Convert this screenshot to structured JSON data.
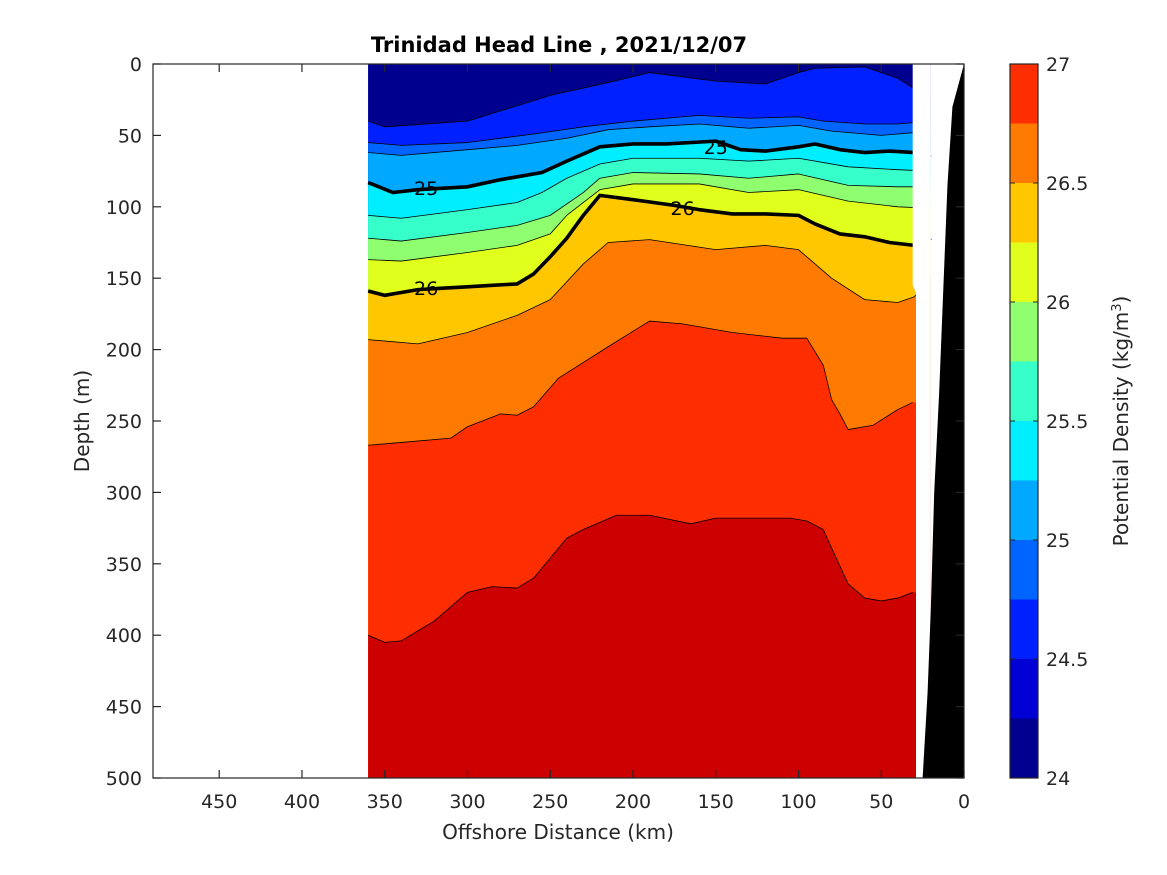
{
  "chart_data": {
    "type": "contour",
    "title": "Trinidad Head Line , 2021/12/07",
    "xlabel": "Offshore Distance (km)",
    "ylabel": "Depth (m)",
    "colorbar_label": "Potential Density (kg/m",
    "colorbar_label_sup": "3",
    "colorbar_label_close": ")",
    "xlim": [
      490,
      0
    ],
    "ylim": [
      0,
      500
    ],
    "x_reversed": true,
    "y_reversed": true,
    "x_ticks": [
      450,
      400,
      350,
      300,
      250,
      200,
      150,
      100,
      50,
      0
    ],
    "y_ticks": [
      0,
      50,
      100,
      150,
      200,
      250,
      300,
      350,
      400,
      450,
      500
    ],
    "colorbar_range": [
      24,
      27
    ],
    "colorbar_ticks": [
      24,
      24.5,
      25,
      25.5,
      26,
      26.5,
      27
    ],
    "colorbar_tick_labels": [
      "24",
      "24.5",
      "25",
      "25.5",
      "26",
      "26.5",
      "27"
    ],
    "levels": [
      24.25,
      24.5,
      24.75,
      25,
      25.25,
      25.5,
      25.75,
      26,
      26.25,
      26.5,
      26.75
    ],
    "colormap": [
      "#00008f",
      "#0000d5",
      "#0020ff",
      "#0064ff",
      "#00a8ff",
      "#00eeff",
      "#36ffc9",
      "#8fff70",
      "#e0ff1c",
      "#ffc700",
      "#ff7a00",
      "#ff2e00",
      "#cc0000"
    ],
    "section_x_range": [
      360,
      20
    ],
    "labeled_contours": [
      {
        "level": 25,
        "label": "25",
        "label_positions": [
          [
            150,
            58
          ],
          [
            325,
            87
          ]
        ]
      },
      {
        "level": 26,
        "label": "26",
        "label_positions": [
          [
            170,
            101
          ],
          [
            325,
            157
          ]
        ]
      }
    ],
    "contours": [
      {
        "level": 24.25,
        "x": [
          360,
          350,
          300,
          250,
          215,
          190,
          150,
          120,
          100,
          90,
          60,
          40,
          32,
          25,
          22
        ],
        "y": [
          40,
          44,
          40,
          22,
          13,
          6,
          12,
          14,
          6,
          3,
          2,
          10,
          16,
          22,
          24
        ]
      },
      {
        "level": 24.5,
        "x": [
          360,
          340,
          300,
          260,
          230,
          200,
          160,
          130,
          100,
          85,
          60,
          40,
          20
        ],
        "y": [
          55,
          57,
          55,
          49,
          44,
          40,
          36,
          38,
          37,
          40,
          42,
          42,
          40
        ]
      },
      {
        "level": 24.75,
        "x": [
          360,
          340,
          300,
          270,
          240,
          215,
          190,
          160,
          130,
          100,
          80,
          50,
          30,
          20
        ],
        "y": [
          62,
          64,
          60,
          57,
          52,
          46,
          44,
          42,
          45,
          43,
          47,
          50,
          48,
          48
        ]
      },
      {
        "level": 25,
        "x": [
          360,
          345,
          330,
          300,
          280,
          270,
          255,
          240,
          220,
          200,
          180,
          150,
          135,
          120,
          100,
          90,
          75,
          60,
          45,
          30,
          20
        ],
        "y": [
          83,
          90,
          88,
          86,
          81,
          79,
          76,
          68,
          58,
          56,
          56,
          54,
          60,
          61,
          58,
          56,
          60,
          62,
          61,
          62,
          65
        ]
      },
      {
        "level": 25.25,
        "x": [
          360,
          340,
          300,
          270,
          255,
          240,
          220,
          200,
          160,
          130,
          100,
          70,
          40,
          20
        ],
        "y": [
          106,
          108,
          102,
          97,
          90,
          80,
          70,
          66,
          66,
          68,
          66,
          72,
          74,
          75
        ]
      },
      {
        "level": 25.5,
        "x": [
          360,
          340,
          300,
          270,
          250,
          230,
          220,
          200,
          160,
          130,
          100,
          70,
          40,
          20
        ],
        "y": [
          122,
          124,
          118,
          113,
          106,
          90,
          80,
          76,
          77,
          80,
          77,
          85,
          86,
          86
        ]
      },
      {
        "level": 25.75,
        "x": [
          360,
          340,
          300,
          270,
          250,
          240,
          220,
          200,
          160,
          130,
          100,
          70,
          40,
          20
        ],
        "y": [
          137,
          138,
          132,
          127,
          119,
          106,
          88,
          84,
          84,
          90,
          88,
          96,
          100,
          101
        ]
      },
      {
        "level": 26,
        "x": [
          360,
          350,
          340,
          330,
          315,
          300,
          285,
          270,
          260,
          250,
          240,
          230,
          220,
          200,
          175,
          160,
          140,
          120,
          100,
          90,
          75,
          60,
          45,
          30,
          20
        ],
        "y": [
          159,
          162,
          160,
          158,
          157,
          156,
          155,
          154,
          147,
          135,
          122,
          106,
          92,
          95,
          99,
          102,
          105,
          105,
          106,
          112,
          119,
          121,
          125,
          127,
          122
        ]
      },
      {
        "level": 26.25,
        "x": [
          360,
          330,
          300,
          270,
          250,
          230,
          215,
          190,
          150,
          120,
          100,
          80,
          60,
          40,
          30,
          25,
          20
        ],
        "y": [
          193,
          196,
          188,
          176,
          165,
          140,
          125,
          123,
          130,
          127,
          130,
          150,
          165,
          167,
          163,
          157,
          150
        ]
      },
      {
        "level": 26.5,
        "x": [
          360,
          340,
          310,
          300,
          280,
          270,
          260,
          245,
          215,
          190,
          170,
          140,
          110,
          95,
          85,
          80,
          75,
          70,
          55,
          40,
          31
        ],
        "y": [
          267,
          265,
          262,
          254,
          245,
          246,
          240,
          220,
          198,
          180,
          182,
          188,
          192,
          192,
          211,
          235,
          245,
          256,
          253,
          242,
          237
        ]
      },
      {
        "level": 26.75,
        "x": [
          360,
          350,
          340,
          320,
          300,
          285,
          270,
          260,
          250,
          240,
          230,
          210,
          190,
          165,
          150,
          140,
          120,
          105,
          95,
          85,
          80,
          70,
          60,
          50,
          40,
          31
        ],
        "y": [
          400,
          405,
          404,
          390,
          370,
          366,
          367,
          360,
          346,
          332,
          326,
          316,
          316,
          322,
          318,
          318,
          318,
          318,
          320,
          326,
          339,
          364,
          374,
          376,
          374,
          370
        ]
      }
    ],
    "white_gaps": [
      {
        "x": [
          20,
          31,
          31,
          29,
          29,
          27,
          20
        ],
        "y": [
          0,
          0,
          155,
          160,
          500,
          500,
          500
        ]
      }
    ],
    "bathymetry": {
      "color": "#000000",
      "x": [
        0,
        7,
        10,
        15,
        18,
        20,
        22,
        25,
        27,
        0
      ],
      "y": [
        0,
        30,
        85,
        230,
        300,
        380,
        440,
        500,
        500,
        500
      ]
    }
  }
}
